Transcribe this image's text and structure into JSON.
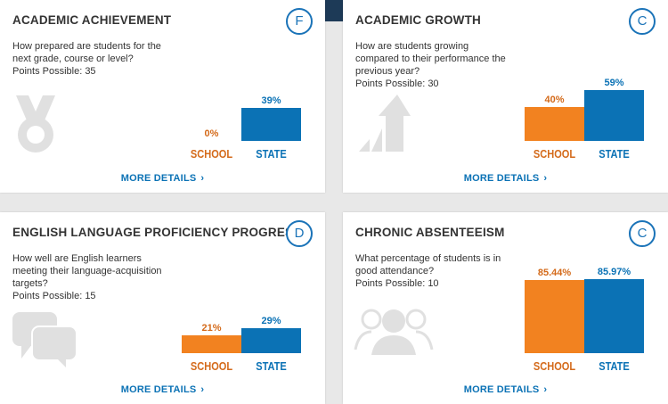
{
  "cards": [
    {
      "title": "ACADEMIC ACHIEVEMENT",
      "grade": "F",
      "question": "How prepared are students for the next grade, course or level?",
      "points": "Points Possible: 35",
      "icon": "medal-icon",
      "school_label": "SCHOOL",
      "state_label": "STATE",
      "school_value": "0%",
      "state_value": "39%",
      "more": "MORE DETAILS"
    },
    {
      "title": "ACADEMIC GROWTH",
      "grade": "C",
      "question": "How are students growing compared to their performance the previous year?",
      "points": "Points Possible: 30",
      "icon": "growth-arrow-icon",
      "school_label": "SCHOOL",
      "state_label": "STATE",
      "school_value": "40%",
      "state_value": "59%",
      "more": "MORE DETAILS"
    },
    {
      "title": "ENGLISH LANGUAGE PROFICIENCY PROGRESS",
      "grade": "D",
      "question": "How well are English learners meeting their language-acquisition targets?",
      "points": "Points Possible: 15",
      "icon": "speech-bubbles-icon",
      "school_label": "SCHOOL",
      "state_label": "STATE",
      "school_value": "21%",
      "state_value": "29%",
      "more": "MORE DETAILS"
    },
    {
      "title": "CHRONIC ABSENTEEISM",
      "grade": "C",
      "question": "What percentage of students is in good attendance?",
      "points": "Points Possible: 10",
      "icon": "people-group-icon",
      "school_label": "SCHOOL",
      "state_label": "STATE",
      "school_value": "85.44%",
      "state_value": "85.97%",
      "more": "MORE DETAILS"
    }
  ],
  "chart_data": [
    {
      "type": "bar",
      "categories": [
        "SCHOOL",
        "STATE"
      ],
      "values": [
        0,
        39
      ]
    },
    {
      "type": "bar",
      "categories": [
        "SCHOOL",
        "STATE"
      ],
      "values": [
        40,
        59
      ]
    },
    {
      "type": "bar",
      "categories": [
        "SCHOOL",
        "STATE"
      ],
      "values": [
        21,
        29
      ]
    },
    {
      "type": "bar",
      "categories": [
        "SCHOOL",
        "STATE"
      ],
      "values": [
        85.44,
        85.97
      ]
    }
  ],
  "colors": {
    "school": "#f28220",
    "state": "#0b72b5",
    "grade": "#1a73b8"
  }
}
